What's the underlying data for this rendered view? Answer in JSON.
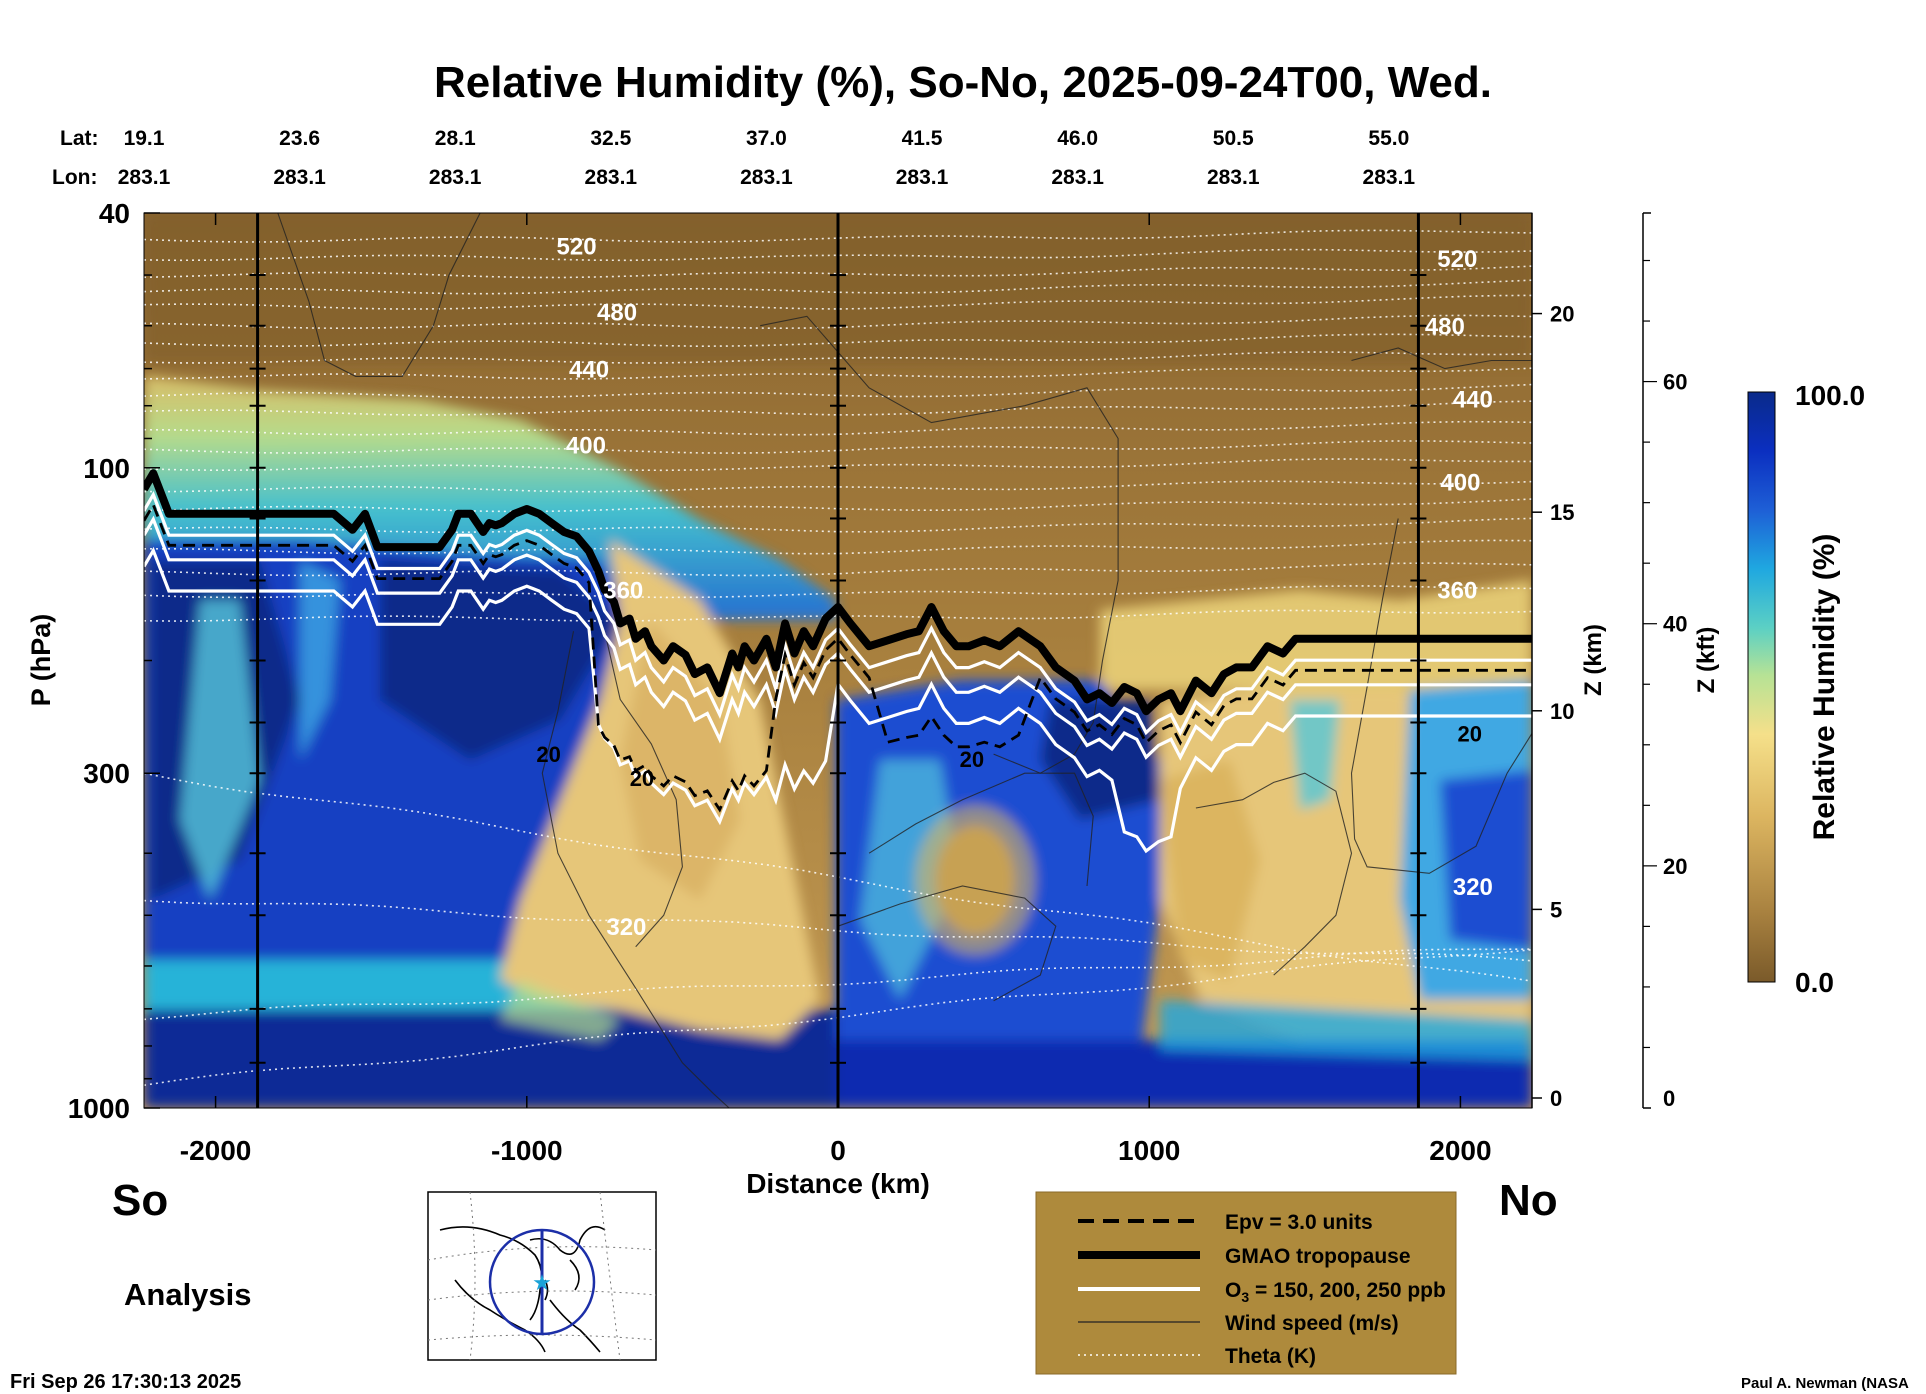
{
  "chart_data": {
    "type": "heatmap",
    "title": "Relative Humidity (%), So-No, 2025-09-24T00, Wed.",
    "xlabel": "Distance (km)",
    "ylabel": "P (hPa)",
    "ylabel_right_km": "Z (km)",
    "ylabel_right_kft": "Z (kft)",
    "colorbar_label": "Relative Humidity (%)",
    "colorbar_max_label": "100.0",
    "colorbar_min_label": "0.0",
    "colorbar_range": [
      0,
      100
    ],
    "colors": {
      "dry": "#7a5a2a",
      "mid": "#f5e08a",
      "wet": "#0a2a8a"
    },
    "xlim": [
      -2230,
      2230
    ],
    "ylim_hpa": [
      1000,
      40
    ],
    "y_scale": "log",
    "x_ticks": [
      "-2000",
      "-1000",
      "0",
      "1000",
      "2000"
    ],
    "x_tick_values": [
      -2000,
      -1000,
      0,
      1000,
      2000
    ],
    "y_ticks": [
      "40",
      "100",
      "300",
      "1000"
    ],
    "y_tick_values": [
      40,
      100,
      300,
      1000
    ],
    "z_km_ticks": [
      "0",
      "5",
      "10",
      "15",
      "20"
    ],
    "z_kft_ticks": [
      "0",
      "20",
      "40",
      "60"
    ],
    "lat_label": "Lat:",
    "lon_label": "Lon:",
    "lat_values": [
      "19.1",
      "23.6",
      "28.1",
      "32.5",
      "37.0",
      "41.5",
      "46.0",
      "50.5",
      "55.0"
    ],
    "lon_values": [
      "283.1",
      "283.1",
      "283.1",
      "283.1",
      "283.1",
      "283.1",
      "283.1",
      "283.1",
      "283.1"
    ],
    "tick_distances": [
      -2230,
      -1730,
      -1230,
      -730,
      -230,
      270,
      770,
      1270,
      1770
    ],
    "vertical_lines_km": [
      -1865,
      0,
      1865
    ],
    "theta_labels": [
      {
        "text": "520",
        "x": -840,
        "p": 45
      },
      {
        "text": "480",
        "x": -710,
        "p": 57
      },
      {
        "text": "440",
        "x": -800,
        "p": 70
      },
      {
        "text": "400",
        "x": -810,
        "p": 92
      },
      {
        "text": "360",
        "x": -690,
        "p": 155
      },
      {
        "text": "320",
        "x": -680,
        "p": 520
      },
      {
        "text": "520",
        "x": 1990,
        "p": 47
      },
      {
        "text": "480",
        "x": 1950,
        "p": 60
      },
      {
        "text": "440",
        "x": 2040,
        "p": 78
      },
      {
        "text": "400",
        "x": 2000,
        "p": 105
      },
      {
        "text": "360",
        "x": 1990,
        "p": 155
      },
      {
        "text": "320",
        "x": 2040,
        "p": 450
      }
    ],
    "wind_labels": [
      {
        "text": "20",
        "x": -930,
        "p": 280
      },
      {
        "text": "20",
        "x": -630,
        "p": 305
      },
      {
        "text": "20",
        "x": 430,
        "p": 285
      },
      {
        "text": "20",
        "x": 2030,
        "p": 260
      }
    ],
    "tropopause": {
      "x": [
        -2230,
        -2200,
        -2150,
        -2100,
        -2000,
        -1900,
        -1800,
        -1700,
        -1620,
        -1560,
        -1520,
        -1480,
        -1430,
        -1380,
        -1280,
        -1240,
        -1220,
        -1200,
        -1180,
        -1140,
        -1120,
        -1100,
        -1080,
        -1040,
        -1000,
        -960,
        -920,
        -880,
        -840,
        -800,
        -770,
        -750,
        -720,
        -700,
        -670,
        -650,
        -620,
        -600,
        -560,
        -530,
        -490,
        -460,
        -420,
        -380,
        -340,
        -320,
        -300,
        -270,
        -230,
        -200,
        -170,
        -140,
        -110,
        -80,
        -40,
        0,
        40,
        100,
        160,
        220,
        260,
        300,
        340,
        380,
        420,
        470,
        520,
        580,
        650,
        700,
        760,
        800,
        840,
        880,
        920,
        960,
        990,
        1030,
        1070,
        1100,
        1150,
        1200,
        1240,
        1280,
        1330,
        1380,
        1430,
        1470,
        1520,
        1600,
        1700,
        1800,
        1900,
        2000,
        2100,
        2230
      ],
      "p": [
        108,
        102,
        118,
        118,
        118,
        118,
        118,
        118,
        118,
        125,
        118,
        133,
        133,
        133,
        133,
        125,
        118,
        118,
        118,
        126,
        122,
        123,
        122,
        118,
        116,
        118,
        122,
        126,
        128,
        135,
        145,
        155,
        162,
        175,
        172,
        185,
        180,
        190,
        200,
        190,
        196,
        210,
        205,
        225,
        195,
        205,
        190,
        200,
        185,
        205,
        175,
        195,
        180,
        190,
        172,
        165,
        175,
        190,
        186,
        182,
        180,
        165,
        180,
        190,
        190,
        186,
        190,
        180,
        190,
        205,
        215,
        230,
        225,
        233,
        220,
        225,
        240,
        230,
        225,
        240,
        215,
        225,
        210,
        205,
        205,
        190,
        195,
        185,
        185,
        185,
        185,
        185,
        185,
        185,
        185,
        185
      ]
    },
    "series": [
      {
        "name": "Epv = 3.0 units"
      },
      {
        "name": "GMAO tropopause"
      },
      {
        "name": "O3 = 150, 200, 250 ppb"
      },
      {
        "name": "Wind speed (m/s)"
      },
      {
        "name": "Theta (K)"
      }
    ]
  },
  "labels": {
    "south": "So",
    "north": "No",
    "mode": "Analysis",
    "timestamp": "Fri Sep 26 17:30:13 2025",
    "credit": "Paul A. Newman (NASA"
  },
  "legend": {
    "items": [
      {
        "label": "Epv = 3.0 units",
        "style": "dashed"
      },
      {
        "label": "GMAO tropopause",
        "style": "thick"
      },
      {
        "label": "O",
        "sub": "3",
        "rest": " = 150, 200, 250 ppb",
        "style": "white"
      },
      {
        "label": "Wind speed (m/s)",
        "style": "thin"
      },
      {
        "label": "Theta (K)",
        "style": "dotted"
      }
    ],
    "background": "#ae8a3c"
  },
  "inset_map": {
    "icon": "globe-map-icon",
    "circle_color": "#1c2fa8",
    "marker_color": "#1aa3d8"
  }
}
